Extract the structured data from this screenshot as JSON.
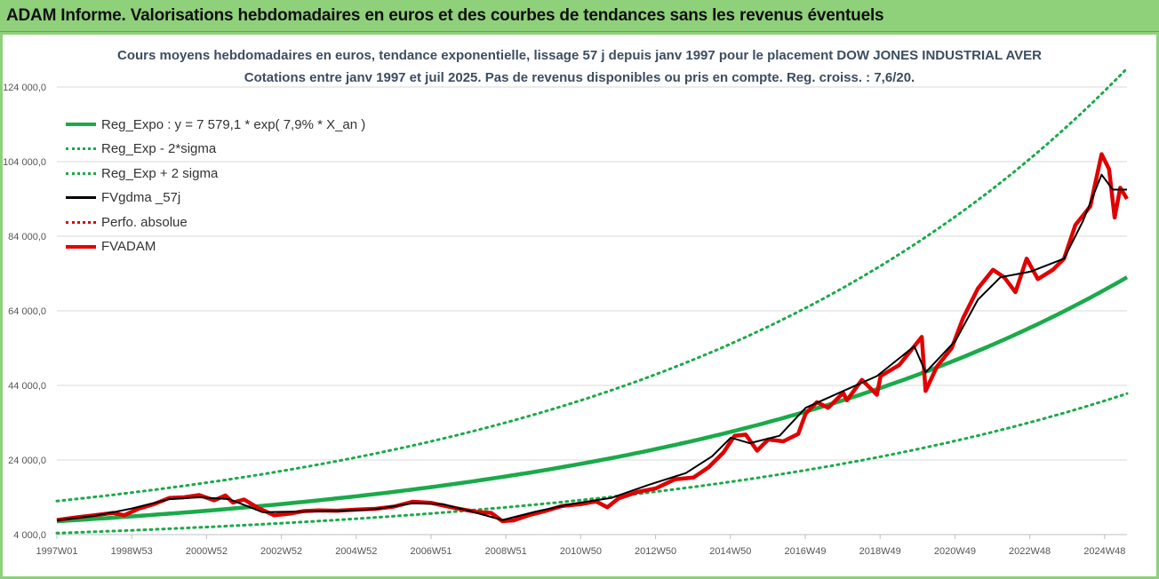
{
  "banner": {
    "title": "ADAM Informe. Valorisations hebdomadaires en euros et des courbes de tendances sans les revenus éventuels"
  },
  "chart_data": {
    "type": "line",
    "title": "Cours moyens hebdomadaires en euros, tendance exponentielle, lissage 57 j depuis janv 1997  pour le placement DOW JONES INDUSTRIAL AVER",
    "subtitle": "Cotations entre janv 1997 et juil 2025. Pas de revenus disponibles ou pris en compte. Reg. croiss. : 7,6/20.",
    "xlabel": "",
    "ylabel": "",
    "x_tick_labels": [
      "1997W01",
      "1998W53",
      "2000W52",
      "2002W52",
      "2004W52",
      "2006W51",
      "2008W51",
      "2010W50",
      "2012W50",
      "2014W50",
      "2016W49",
      "2018W49",
      "2020W49",
      "2022W48",
      "2024W48"
    ],
    "y_tick_labels": [
      "4 000,0",
      "24 000,0",
      "44 000,0",
      "64 000,0",
      "84 000,0",
      "104 000,0",
      "124 000,0"
    ],
    "ylim": [
      4000,
      124000
    ],
    "xlim": [
      1997.0,
      2025.58
    ],
    "grid": true,
    "legend_position": "top-left",
    "series": [
      {
        "name": "Reg_Expo : y = 7 579,1 * exp( 7,9% *  X_an )",
        "style": "solid-thick",
        "color": "#1aaa4a",
        "points": [
          [
            1997.0,
            7579
          ],
          [
            2001.0,
            10379
          ],
          [
            2005.0,
            14213
          ],
          [
            2009.0,
            19464
          ],
          [
            2013.0,
            26654
          ],
          [
            2017.0,
            36502
          ],
          [
            2021.0,
            49987
          ],
          [
            2025.58,
            73000
          ]
        ]
      },
      {
        "name": "Reg_Exp - 2*sigma",
        "style": "dotted",
        "color": "#1aaa4a",
        "points": [
          [
            1997.0,
            4400
          ],
          [
            2001.0,
            6030
          ],
          [
            2005.0,
            8260
          ],
          [
            2009.0,
            11310
          ],
          [
            2013.0,
            15490
          ],
          [
            2017.0,
            21210
          ],
          [
            2021.0,
            29050
          ],
          [
            2025.58,
            41800
          ]
        ]
      },
      {
        "name": "Reg_Exp + 2 sigma",
        "style": "dotted",
        "color": "#1aaa4a",
        "points": [
          [
            1997.0,
            13000
          ],
          [
            2001.0,
            17800
          ],
          [
            2005.0,
            24380
          ],
          [
            2009.0,
            33390
          ],
          [
            2013.0,
            45730
          ],
          [
            2017.0,
            62630
          ],
          [
            2021.0,
            85770
          ],
          [
            2025.58,
            129000
          ]
        ]
      },
      {
        "name": "FVgdma _57j",
        "style": "solid",
        "color": "#000000",
        "points": [
          [
            1997.0,
            7800
          ],
          [
            1998.0,
            9000
          ],
          [
            1999.0,
            11000
          ],
          [
            2000.0,
            13500
          ],
          [
            2000.8,
            14000
          ],
          [
            2001.6,
            13500
          ],
          [
            2002.5,
            10000
          ],
          [
            2003.5,
            10200
          ],
          [
            2004.5,
            10300
          ],
          [
            2005.5,
            10800
          ],
          [
            2006.5,
            12400
          ],
          [
            2007.3,
            12200
          ],
          [
            2008.0,
            10400
          ],
          [
            2008.9,
            7900
          ],
          [
            2009.8,
            10200
          ],
          [
            2010.8,
            12300
          ],
          [
            2011.8,
            13800
          ],
          [
            2012.8,
            17300
          ],
          [
            2013.8,
            20500
          ],
          [
            2014.5,
            25000
          ],
          [
            2015.0,
            30000
          ],
          [
            2015.5,
            28500
          ],
          [
            2016.3,
            30500
          ],
          [
            2017.0,
            38000
          ],
          [
            2018.0,
            42500
          ],
          [
            2018.9,
            46500
          ],
          [
            2019.9,
            54500
          ],
          [
            2020.2,
            47500
          ],
          [
            2021.0,
            56000
          ],
          [
            2021.6,
            67000
          ],
          [
            2022.2,
            73000
          ],
          [
            2023.0,
            74500
          ],
          [
            2023.9,
            78000
          ],
          [
            2024.4,
            88000
          ],
          [
            2024.9,
            100500
          ],
          [
            2025.2,
            96500
          ],
          [
            2025.58,
            96500
          ]
        ]
      },
      {
        "name": "Perfo. absolue",
        "style": "dotted",
        "color": "#e00000",
        "points": []
      },
      {
        "name": "FVADAM",
        "style": "solid-thick",
        "color": "#e00000",
        "points": [
          [
            1997.0,
            7900
          ],
          [
            1997.5,
            8600
          ],
          [
            1998.0,
            9200
          ],
          [
            1998.5,
            9800
          ],
          [
            1998.8,
            9200
          ],
          [
            1999.2,
            11000
          ],
          [
            1999.6,
            12200
          ],
          [
            2000.0,
            13800
          ],
          [
            2000.4,
            14000
          ],
          [
            2000.8,
            14600
          ],
          [
            2001.2,
            13200
          ],
          [
            2001.5,
            14500
          ],
          [
            2001.7,
            12600
          ],
          [
            2002.0,
            13400
          ],
          [
            2002.4,
            11000
          ],
          [
            2002.8,
            9200
          ],
          [
            2003.2,
            9600
          ],
          [
            2003.6,
            10300
          ],
          [
            2004.0,
            10500
          ],
          [
            2004.5,
            10400
          ],
          [
            2005.0,
            10700
          ],
          [
            2005.5,
            10900
          ],
          [
            2006.0,
            11500
          ],
          [
            2006.5,
            12800
          ],
          [
            2007.0,
            12500
          ],
          [
            2007.4,
            11600
          ],
          [
            2007.8,
            10800
          ],
          [
            2008.2,
            10100
          ],
          [
            2008.6,
            9800
          ],
          [
            2008.9,
            7600
          ],
          [
            2009.2,
            7800
          ],
          [
            2009.6,
            9200
          ],
          [
            2010.0,
            10200
          ],
          [
            2010.5,
            11700
          ],
          [
            2011.0,
            12200
          ],
          [
            2011.4,
            12900
          ],
          [
            2011.7,
            11300
          ],
          [
            2012.0,
            13700
          ],
          [
            2012.5,
            15400
          ],
          [
            2013.0,
            16400
          ],
          [
            2013.5,
            18800
          ],
          [
            2014.0,
            19300
          ],
          [
            2014.4,
            22000
          ],
          [
            2014.8,
            26000
          ],
          [
            2015.1,
            30500
          ],
          [
            2015.4,
            30800
          ],
          [
            2015.7,
            26500
          ],
          [
            2016.0,
            29500
          ],
          [
            2016.4,
            29000
          ],
          [
            2016.8,
            31000
          ],
          [
            2017.0,
            36500
          ],
          [
            2017.3,
            39500
          ],
          [
            2017.6,
            38000
          ],
          [
            2018.0,
            42000
          ],
          [
            2018.1,
            40000
          ],
          [
            2018.5,
            45500
          ],
          [
            2018.9,
            41500
          ],
          [
            2019.0,
            46500
          ],
          [
            2019.5,
            49500
          ],
          [
            2019.9,
            54500
          ],
          [
            2020.1,
            57000
          ],
          [
            2020.2,
            42500
          ],
          [
            2020.5,
            49000
          ],
          [
            2020.9,
            54000
          ],
          [
            2021.2,
            62000
          ],
          [
            2021.6,
            70000
          ],
          [
            2022.0,
            75000
          ],
          [
            2022.3,
            73000
          ],
          [
            2022.6,
            69000
          ],
          [
            2022.9,
            78000
          ],
          [
            2023.2,
            72500
          ],
          [
            2023.6,
            75000
          ],
          [
            2023.9,
            78000
          ],
          [
            2024.2,
            87000
          ],
          [
            2024.6,
            92000
          ],
          [
            2024.9,
            106000
          ],
          [
            2025.1,
            102000
          ],
          [
            2025.25,
            89000
          ],
          [
            2025.4,
            97000
          ],
          [
            2025.58,
            94000
          ]
        ]
      }
    ]
  }
}
